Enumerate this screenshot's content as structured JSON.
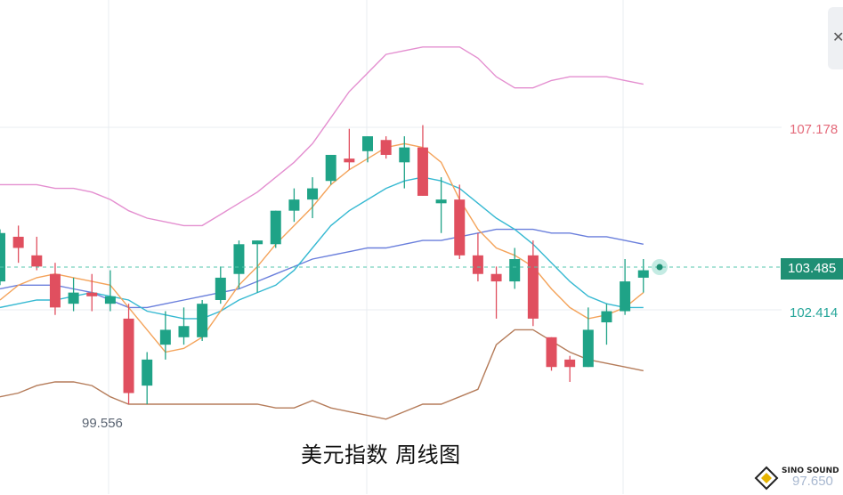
{
  "chart_data": {
    "type": "candlestick",
    "title": "美元指数 周线图",
    "price_labels": {
      "upper": "107.178",
      "last": "103.485",
      "lower": "102.414",
      "bottom": "97.650",
      "period_low": "99.556"
    },
    "ylim": [
      97.2,
      110.0
    ],
    "ohlc": [
      [
        104.4,
        104.5,
        103.0,
        103.1,
        "down"
      ],
      [
        104.0,
        104.6,
        103.6,
        104.3,
        "up"
      ],
      [
        103.5,
        104.3,
        103.4,
        103.8,
        "up"
      ],
      [
        103.3,
        103.6,
        102.2,
        102.4,
        "up"
      ],
      [
        102.8,
        103.2,
        102.3,
        102.5,
        "down"
      ],
      [
        102.7,
        103.3,
        102.3,
        102.8,
        "up"
      ],
      [
        102.7,
        103.4,
        102.3,
        102.5,
        "down"
      ],
      [
        102.1,
        102.5,
        99.8,
        100.1,
        "up"
      ],
      [
        100.3,
        101.2,
        99.8,
        101.0,
        "down"
      ],
      [
        101.4,
        102.3,
        101.0,
        101.8,
        "down"
      ],
      [
        101.6,
        102.4,
        101.4,
        101.9,
        "down"
      ],
      [
        101.6,
        102.6,
        101.5,
        102.5,
        "down"
      ],
      [
        102.6,
        103.5,
        102.5,
        103.2,
        "down"
      ],
      [
        103.3,
        104.2,
        102.9,
        104.1,
        "down"
      ],
      [
        104.1,
        104.2,
        102.8,
        104.2,
        "down"
      ],
      [
        104.1,
        105.0,
        104.0,
        105.0,
        "down"
      ],
      [
        105.0,
        105.6,
        104.7,
        105.3,
        "down"
      ],
      [
        105.3,
        105.9,
        104.8,
        105.6,
        "down"
      ],
      [
        105.8,
        106.5,
        105.7,
        106.5,
        "down"
      ],
      [
        106.3,
        107.2,
        106.1,
        106.4,
        "up"
      ],
      [
        106.6,
        107.0,
        106.3,
        107.0,
        "down"
      ],
      [
        106.9,
        107.0,
        106.4,
        106.5,
        "up"
      ],
      [
        106.3,
        107.0,
        105.6,
        106.7,
        "down"
      ],
      [
        106.7,
        107.3,
        105.4,
        105.4,
        "up"
      ],
      [
        105.2,
        105.9,
        104.4,
        105.3,
        "down"
      ],
      [
        105.3,
        105.7,
        103.7,
        103.8,
        "up"
      ],
      [
        103.8,
        104.4,
        103.1,
        103.3,
        "up"
      ],
      [
        103.3,
        103.5,
        102.1,
        103.1,
        "up"
      ],
      [
        103.1,
        104.0,
        102.9,
        103.7,
        "down"
      ],
      [
        103.8,
        104.2,
        101.9,
        102.1,
        "up"
      ],
      [
        101.6,
        101.6,
        100.7,
        100.8,
        "up"
      ],
      [
        101.0,
        101.1,
        100.4,
        100.8,
        "up"
      ],
      [
        100.8,
        102.4,
        100.8,
        101.8,
        "down"
      ],
      [
        102.0,
        102.5,
        101.4,
        102.3,
        "down"
      ],
      [
        102.3,
        103.7,
        102.2,
        103.1,
        "down"
      ],
      [
        103.2,
        103.7,
        102.8,
        103.4,
        "down"
      ]
    ],
    "series": [
      {
        "color": "#e48fd0",
        "values": [
          105.7,
          105.7,
          105.7,
          105.6,
          105.6,
          105.5,
          105.3,
          105.0,
          104.8,
          104.7,
          104.6,
          104.6,
          104.9,
          105.2,
          105.5,
          105.9,
          106.3,
          106.8,
          107.5,
          108.2,
          108.7,
          109.2,
          109.3,
          109.4,
          109.4,
          109.4,
          109.1,
          108.6,
          108.3,
          108.3,
          108.5,
          108.6,
          108.6,
          108.6,
          108.5,
          108.4
        ]
      },
      {
        "color": "#6a7fdc",
        "values": [
          102.9,
          103.0,
          103.0,
          103.0,
          102.9,
          102.8,
          102.6,
          102.4,
          102.4,
          102.5,
          102.6,
          102.7,
          102.8,
          102.9,
          103.1,
          103.3,
          103.5,
          103.7,
          103.8,
          103.9,
          104.0,
          104.0,
          104.1,
          104.2,
          104.2,
          104.3,
          104.4,
          104.5,
          104.5,
          104.5,
          104.4,
          104.4,
          104.3,
          104.3,
          104.2,
          104.1
        ]
      },
      {
        "color": "#36b9d2",
        "values": [
          102.4,
          102.5,
          102.6,
          102.6,
          102.7,
          102.8,
          102.7,
          102.6,
          102.3,
          102.2,
          102.1,
          102.1,
          102.3,
          102.6,
          102.8,
          103.0,
          103.4,
          104.0,
          104.6,
          105.0,
          105.3,
          105.6,
          105.8,
          105.9,
          105.8,
          105.6,
          105.2,
          104.8,
          104.5,
          104.1,
          103.6,
          103.1,
          102.7,
          102.5,
          102.4,
          102.4
        ]
      },
      {
        "color": "#f4a35a",
        "values": [
          102.6,
          103.0,
          103.2,
          103.3,
          103.2,
          103.1,
          103.0,
          102.4,
          101.8,
          101.2,
          101.3,
          101.6,
          102.3,
          103.0,
          103.5,
          104.1,
          104.6,
          105.1,
          105.7,
          106.1,
          106.4,
          106.7,
          106.8,
          106.7,
          106.3,
          105.3,
          104.5,
          104.0,
          103.8,
          103.5,
          102.9,
          102.4,
          102.1,
          102.2,
          102.4,
          102.8
        ]
      },
      {
        "color": "#b57c5a",
        "values": [
          100.0,
          100.1,
          100.3,
          100.4,
          100.4,
          100.3,
          100.0,
          99.8,
          99.8,
          99.8,
          99.8,
          99.8,
          99.8,
          99.8,
          99.8,
          99.7,
          99.7,
          99.9,
          99.7,
          99.6,
          99.5,
          99.4,
          99.6,
          99.8,
          99.8,
          100.0,
          100.2,
          101.4,
          101.8,
          101.8,
          101.5,
          101.2,
          101.0,
          100.9,
          100.8,
          100.7
        ]
      }
    ],
    "colors": {
      "up": "#e04f5f",
      "down": "#1fa387",
      "grid": "#e9ecf1",
      "dashed": "#56c7ae"
    }
  }
}
